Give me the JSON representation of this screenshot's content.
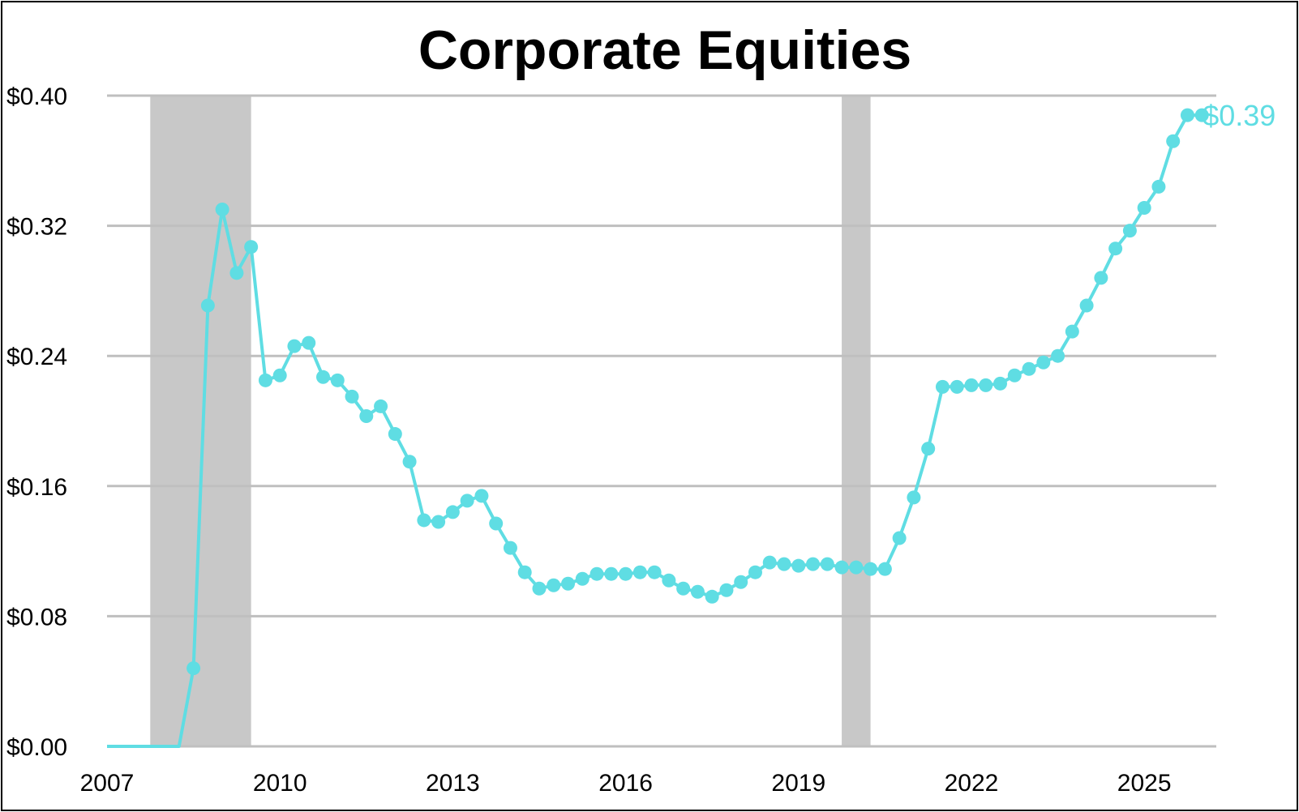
{
  "chart_data": {
    "type": "line",
    "title": "Corporate Equities",
    "xlabel": "",
    "ylabel": "",
    "x_ticks": [
      "2007",
      "2010",
      "2013",
      "2016",
      "2019",
      "2022",
      "2025"
    ],
    "y_ticks": [
      "$0.00",
      "$0.08",
      "$0.16",
      "$0.24",
      "$0.32",
      "$0.40"
    ],
    "ylim": [
      0,
      0.4
    ],
    "xlim": [
      2007,
      2026.25
    ],
    "grid": true,
    "recession_shading": [
      [
        2007.75,
        2009.5
      ],
      [
        2019.75,
        2020.25
      ]
    ],
    "colors": {
      "line": "#5fdde3",
      "recession": "#c8c8c8",
      "grid": "#bfbfbf"
    },
    "end_label": "$0.39",
    "series": [
      {
        "x": [
          2007.0,
          2007.25,
          2007.5,
          2007.75,
          2008.0,
          2008.25,
          2008.5,
          2008.75,
          2009.0,
          2009.25,
          2009.5,
          2009.75,
          2010.0,
          2010.25,
          2010.5,
          2010.75,
          2011.0,
          2011.25,
          2011.5,
          2011.75,
          2012.0,
          2012.25,
          2012.5,
          2012.75,
          2013.0,
          2013.25,
          2013.5,
          2013.75,
          2014.0,
          2014.25,
          2014.5,
          2014.75,
          2015.0,
          2015.25,
          2015.5,
          2015.75,
          2016.0,
          2016.25,
          2016.5,
          2016.75,
          2017.0,
          2017.25,
          2017.5,
          2017.75,
          2018.0,
          2018.25,
          2018.5,
          2018.75,
          2019.0,
          2019.25,
          2019.5,
          2019.75,
          2020.0,
          2020.25,
          2020.5,
          2020.75,
          2021.0,
          2021.25,
          2021.5,
          2021.75,
          2022.0,
          2022.25,
          2022.5,
          2022.75,
          2023.0,
          2023.25,
          2023.5,
          2023.75,
          2024.0,
          2024.25,
          2024.5,
          2024.75,
          2025.0,
          2025.25,
          2025.5,
          2025.75,
          2026.0
        ],
        "y": [
          0,
          0,
          0,
          0,
          0,
          0,
          0.048,
          0.271,
          0.33,
          0.291,
          0.307,
          0.225,
          0.228,
          0.246,
          0.248,
          0.227,
          0.225,
          0.215,
          0.203,
          0.209,
          0.192,
          0.175,
          0.139,
          0.138,
          0.144,
          0.151,
          0.154,
          0.137,
          0.122,
          0.107,
          0.097,
          0.099,
          0.1,
          0.103,
          0.106,
          0.106,
          0.106,
          0.107,
          0.107,
          0.102,
          0.097,
          0.095,
          0.092,
          0.096,
          0.101,
          0.107,
          0.113,
          0.112,
          0.111,
          0.112,
          0.112,
          0.11,
          0.11,
          0.109,
          0.109,
          0.128,
          0.153,
          0.183,
          0.221,
          0.221,
          0.222,
          0.222,
          0.223,
          0.228,
          0.232,
          0.236,
          0.24,
          0.255,
          0.271,
          0.288,
          0.306,
          0.317,
          0.331,
          0.344,
          0.372,
          0.388,
          0.388
        ],
        "markers_from_index": 6
      }
    ]
  }
}
